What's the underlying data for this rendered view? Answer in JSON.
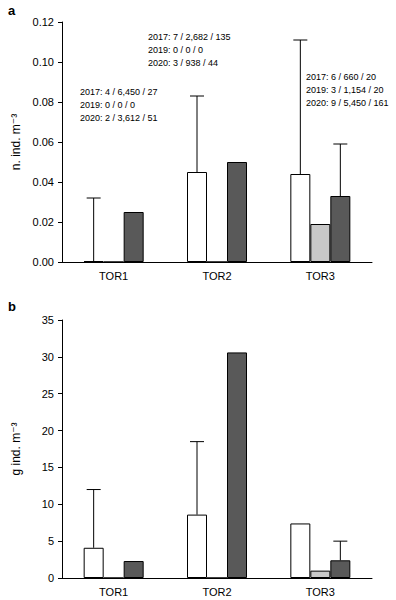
{
  "chart_data": [
    {
      "type": "bar",
      "panel": "a",
      "ylabel": "n. ind. m⁻³",
      "categories": [
        "TOR1",
        "TOR2",
        "TOR3"
      ],
      "ylim": [
        0,
        0.12
      ],
      "yticks": [
        {
          "value": 0,
          "label": "0.00"
        },
        {
          "value": 0.02,
          "label": "0.02"
        },
        {
          "value": 0.04,
          "label": "0.04"
        },
        {
          "value": 0.06,
          "label": "0.06"
        },
        {
          "value": 0.08,
          "label": "0.08"
        },
        {
          "value": 0.1,
          "label": "0.10"
        },
        {
          "value": 0.12,
          "label": "0.12"
        }
      ],
      "grid": false,
      "series": [
        {
          "color": "#ffffff",
          "values": [
            0.0005,
            0.045,
            0.044
          ],
          "errors": [
            0.0315,
            0.038,
            0.067
          ]
        },
        {
          "color": "#c8c8c8",
          "values": [
            0,
            0,
            0.019
          ],
          "errors": [
            null,
            null,
            null
          ]
        },
        {
          "color": "#595959",
          "values": [
            0.025,
            0.05,
            0.033
          ],
          "errors": [
            null,
            null,
            0.026
          ]
        }
      ],
      "annotations": [
        {
          "category": "TOR1",
          "lines": [
            "2017: 4 / 6,450 / 27",
            "2019: 0 / 0 / 0",
            "2020: 2 / 3,612 / 51"
          ]
        },
        {
          "category": "TOR2",
          "lines": [
            "2017: 7 / 2,682 / 135",
            "2019: 0 / 0 / 0",
            "2020: 3 / 938 / 44"
          ]
        },
        {
          "category": "TOR3",
          "lines": [
            "2017: 6 / 660 / 20",
            "2019: 3 / 1,154 / 20",
            "2020: 9 / 5,450 / 161"
          ]
        }
      ]
    },
    {
      "type": "bar",
      "panel": "b",
      "ylabel": "g ind. m⁻³",
      "categories": [
        "TOR1",
        "TOR2",
        "TOR3"
      ],
      "ylim": [
        0,
        35
      ],
      "yticks": [
        0,
        5,
        10,
        15,
        20,
        25,
        30,
        35
      ],
      "grid": false,
      "series": [
        {
          "color": "#ffffff",
          "values": [
            4.1,
            8.6,
            7.4
          ],
          "errors": [
            7.9,
            9.9,
            null
          ]
        },
        {
          "color": "#c8c8c8",
          "values": [
            0,
            0,
            1.0
          ],
          "errors": [
            null,
            null,
            null
          ]
        },
        {
          "color": "#595959",
          "values": [
            2.3,
            30.6,
            2.4
          ],
          "errors": [
            null,
            null,
            2.6
          ]
        }
      ]
    }
  ]
}
